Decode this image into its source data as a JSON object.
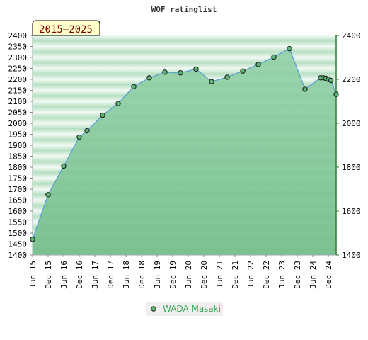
{
  "chart_data": {
    "type": "area",
    "title": "WOF ratinglist",
    "badge": "2015–2025",
    "ylim": [
      1400,
      2400
    ],
    "left_ticks": [
      "2400",
      "2350",
      "2300",
      "2250",
      "2200",
      "2150",
      "2100",
      "2050",
      "2000",
      "1950",
      "1900",
      "1850",
      "1800",
      "1750",
      "1700",
      "1650",
      "1600",
      "1550",
      "1500",
      "1450",
      "1400"
    ],
    "right_ticks": [
      "2400",
      "2200",
      "2000",
      "1800",
      "1600",
      "1400"
    ],
    "x_labels": [
      "Jun 15",
      "Dec 15",
      "Jun 16",
      "Dec 16",
      "Jun 17",
      "Dec 17",
      "Jun 18",
      "Dec 18",
      "Jun 19",
      "Dec 19",
      "Jun 20",
      "Dec 20",
      "Jun 21",
      "Dec 21",
      "Jun 22",
      "Dec 22",
      "Jun 23",
      "Dec 23",
      "Jun 24",
      "Dec 24"
    ],
    "series": [
      {
        "name": "WADA Masaki",
        "color": "#4caf50",
        "points": [
          {
            "x": "2015-06",
            "y": 1472
          },
          {
            "x": "2015-12",
            "y": 1675
          },
          {
            "x": "2016-06",
            "y": 1805
          },
          {
            "x": "2016-12",
            "y": 1937
          },
          {
            "x": "2017-03",
            "y": 1966
          },
          {
            "x": "2017-09",
            "y": 2037
          },
          {
            "x": "2018-03",
            "y": 2090
          },
          {
            "x": "2018-09",
            "y": 2167
          },
          {
            "x": "2019-03",
            "y": 2207
          },
          {
            "x": "2019-09",
            "y": 2233
          },
          {
            "x": "2020-03",
            "y": 2230
          },
          {
            "x": "2020-09",
            "y": 2247
          },
          {
            "x": "2021-03",
            "y": 2190
          },
          {
            "x": "2021-09",
            "y": 2210
          },
          {
            "x": "2022-03",
            "y": 2238
          },
          {
            "x": "2022-09",
            "y": 2268
          },
          {
            "x": "2023-03",
            "y": 2302
          },
          {
            "x": "2023-09",
            "y": 2340
          },
          {
            "x": "2024-03",
            "y": 2155
          },
          {
            "x": "2024-09",
            "y": 2207
          },
          {
            "x": "2024-10",
            "y": 2207
          },
          {
            "x": "2024-11",
            "y": 2205
          },
          {
            "x": "2024-12",
            "y": 2200
          },
          {
            "x": "2025-01",
            "y": 2195
          },
          {
            "x": "2025-03",
            "y": 2132
          }
        ]
      }
    ],
    "colors": {
      "band_light": "#eef7f0",
      "band_dark": "#6ec08a",
      "area_top": "#9ed3ae",
      "area_bottom": "#7bc393",
      "line": "#5aa0d0",
      "marker_fill": "#5fb574",
      "axis_right": "#2e7d32",
      "badge_bg": "#ffffcc"
    },
    "legend_position": "bottom-center"
  }
}
